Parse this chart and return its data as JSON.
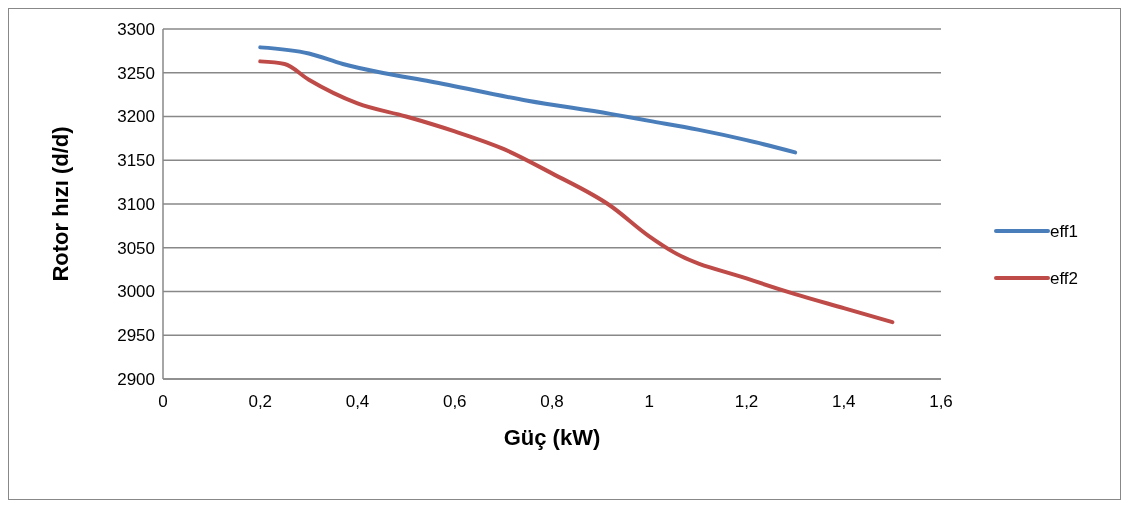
{
  "chart_data": {
    "type": "line",
    "xlabel": "Güç (kW)",
    "ylabel": "Rotor hızı (d/d)",
    "xlim": [
      0,
      1.6
    ],
    "xticks": [
      0,
      {
        "value": 0.2,
        "label": "0,2"
      },
      {
        "value": 0.4,
        "label": "0,4"
      },
      {
        "value": 0.6,
        "label": "0,6"
      },
      {
        "value": 0.8,
        "label": "0,8"
      },
      1,
      {
        "value": 1.2,
        "label": "1,2"
      },
      {
        "value": 1.4,
        "label": "1,4"
      },
      {
        "value": 1.6,
        "label": "1,6"
      }
    ],
    "ylim": [
      2900,
      3300
    ],
    "yticks": [
      2900,
      2950,
      3000,
      3050,
      3100,
      3150,
      3200,
      3250,
      3300
    ],
    "grid": "y",
    "legend": "right",
    "line_style": "solid",
    "marker": "none",
    "series": [
      {
        "name": "eff1",
        "color": "#4a7ebb",
        "x": [
          0.2,
          0.3,
          0.37,
          0.45,
          0.55,
          0.75,
          0.92,
          1.0,
          1.1,
          1.2,
          1.3
        ],
        "values": [
          3279,
          3272,
          3260,
          3250,
          3240,
          3218,
          3203,
          3195,
          3185,
          3173,
          3159
        ]
      },
      {
        "name": "eff2",
        "color": "#be4b48",
        "x": [
          0.2,
          0.25,
          0.3,
          0.4,
          0.5,
          0.6,
          0.7,
          0.8,
          0.92,
          1.0,
          1.05,
          1.2,
          1.3,
          1.4,
          1.5
        ],
        "values": [
          3263,
          3260,
          3242,
          3215,
          3200,
          3183,
          3163,
          3135,
          3098,
          3063,
          3045,
          3015,
          2997,
          2981,
          2965
        ]
      }
    ]
  }
}
